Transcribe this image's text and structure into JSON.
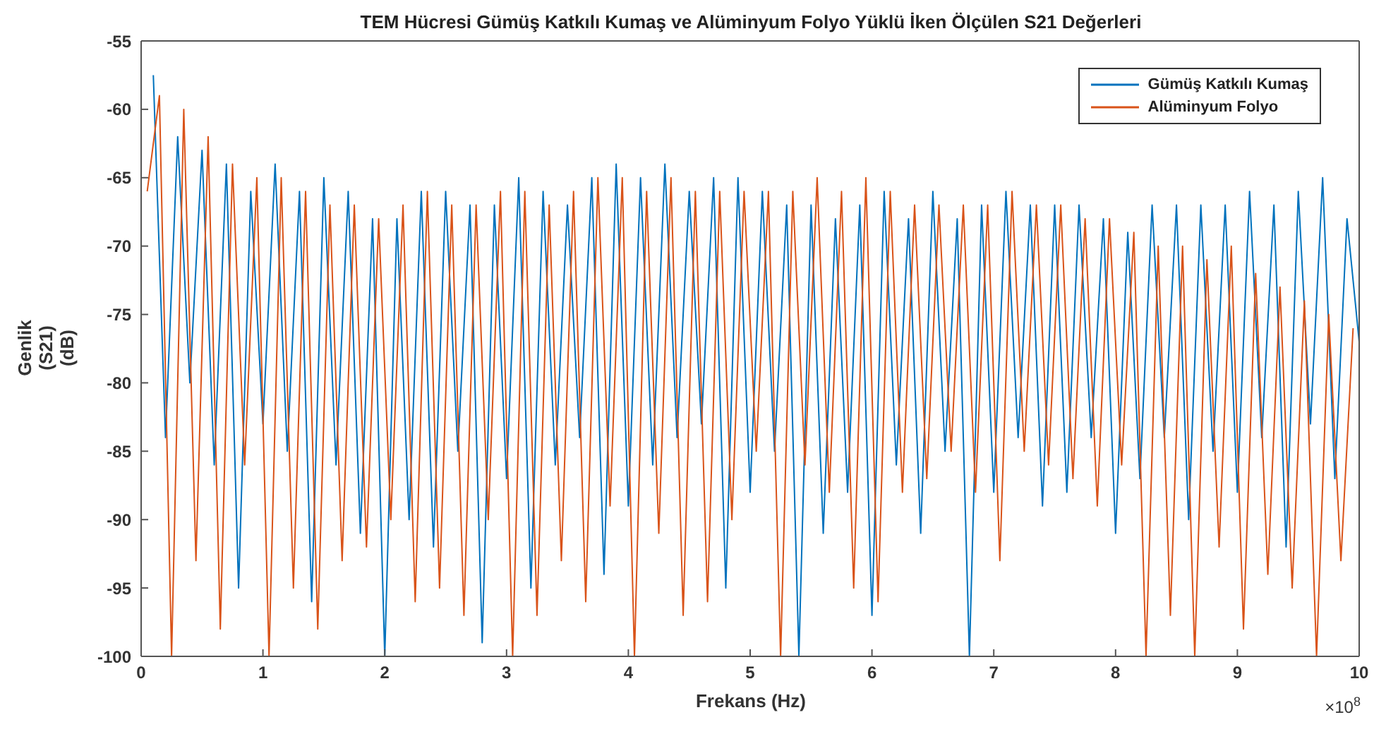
{
  "chart_data": {
    "type": "line",
    "title": "TEM Hücresi Gümüş Katkılı Kumaş ve Alüminyum Folyo Yüklü İken Ölçülen S21 Değerleri",
    "xlabel": "Frekans (Hz)",
    "ylabel": "Genlik\n(S21)\n(dB)",
    "annotations": [
      "×10$^{8}$"
    ],
    "xlim": [
      0,
      10
    ],
    "xticks": [
      0,
      1,
      2,
      3,
      4,
      5,
      6,
      7,
      8,
      9,
      10
    ],
    "ylim": [
      -100,
      -55
    ],
    "yticks": [
      -100,
      -95,
      -90,
      -85,
      -80,
      -75,
      -70,
      -65,
      -60,
      -55
    ],
    "legend": "top right",
    "marker": "none",
    "line_style": "solid",
    "series": [
      {
        "name": "Gümüş Katkılı Kumaş",
        "color": "#0072bd",
        "x": [
          0.1,
          0.2,
          0.3,
          0.4,
          0.5,
          0.6,
          0.7,
          0.8,
          0.9,
          1.0,
          1.1,
          1.2,
          1.3,
          1.4,
          1.5,
          1.6,
          1.7,
          1.8,
          1.9,
          2.0,
          2.1,
          2.2,
          2.3,
          2.4,
          2.5,
          2.6,
          2.7,
          2.8,
          2.9,
          3.0,
          3.1,
          3.2,
          3.3,
          3.4,
          3.5,
          3.6,
          3.7,
          3.8,
          3.9,
          4.0,
          4.1,
          4.2,
          4.3,
          4.4,
          4.5,
          4.6,
          4.7,
          4.8,
          4.9,
          5.0,
          5.1,
          5.2,
          5.3,
          5.4,
          5.5,
          5.6,
          5.7,
          5.8,
          5.9,
          6.0,
          6.1,
          6.2,
          6.3,
          6.4,
          6.5,
          6.6,
          6.7,
          6.8,
          6.9,
          7.0,
          7.1,
          7.2,
          7.3,
          7.4,
          7.5,
          7.6,
          7.7,
          7.8,
          7.9,
          8.0,
          8.1,
          8.2,
          8.3,
          8.4,
          8.5,
          8.6,
          8.7,
          8.8,
          8.9,
          9.0,
          9.1,
          9.2,
          9.3,
          9.4,
          9.5,
          9.6,
          9.7,
          9.8,
          9.9,
          10.0
        ],
        "values": [
          -57.5,
          -84,
          -62,
          -80,
          -63,
          -86,
          -64,
          -95,
          -66,
          -83,
          -64,
          -85,
          -66,
          -96,
          -65,
          -86,
          -66,
          -91,
          -68,
          -100,
          -68,
          -90,
          -66,
          -92,
          -66,
          -85,
          -67,
          -99,
          -67,
          -87,
          -65,
          -95,
          -66,
          -86,
          -67,
          -84,
          -65,
          -94,
          -64,
          -89,
          -65,
          -86,
          -64,
          -84,
          -66,
          -83,
          -65,
          -95,
          -65,
          -88,
          -66,
          -85,
          -67,
          -100,
          -67,
          -91,
          -68,
          -88,
          -67,
          -97,
          -66,
          -86,
          -68,
          -91,
          -66,
          -85,
          -68,
          -100,
          -67,
          -88,
          -66,
          -84,
          -67,
          -89,
          -67,
          -88,
          -67,
          -84,
          -68,
          -91,
          -69,
          -87,
          -67,
          -84,
          -67,
          -90,
          -67,
          -85,
          -67,
          -88,
          -66,
          -84,
          -67,
          -92,
          -66,
          -83,
          -65,
          -87,
          -68,
          -77
        ]
      },
      {
        "name": "Alüminyum Folyo",
        "color": "#d95319",
        "x": [
          0.05,
          0.15,
          0.25,
          0.35,
          0.45,
          0.55,
          0.65,
          0.75,
          0.85,
          0.95,
          1.05,
          1.15,
          1.25,
          1.35,
          1.45,
          1.55,
          1.65,
          1.75,
          1.85,
          1.95,
          2.05,
          2.15,
          2.25,
          2.35,
          2.45,
          2.55,
          2.65,
          2.75,
          2.85,
          2.95,
          3.05,
          3.15,
          3.25,
          3.35,
          3.45,
          3.55,
          3.65,
          3.75,
          3.85,
          3.95,
          4.05,
          4.15,
          4.25,
          4.35,
          4.45,
          4.55,
          4.65,
          4.75,
          4.85,
          4.95,
          5.05,
          5.15,
          5.25,
          5.35,
          5.45,
          5.55,
          5.65,
          5.75,
          5.85,
          5.95,
          6.05,
          6.15,
          6.25,
          6.35,
          6.45,
          6.55,
          6.65,
          6.75,
          6.85,
          6.95,
          7.05,
          7.15,
          7.25,
          7.35,
          7.45,
          7.55,
          7.65,
          7.75,
          7.85,
          7.95,
          8.05,
          8.15,
          8.25,
          8.35,
          8.45,
          8.55,
          8.65,
          8.75,
          8.85,
          8.95,
          9.05,
          9.15,
          9.25,
          9.35,
          9.45,
          9.55,
          9.65,
          9.75,
          9.85,
          9.95
        ],
        "values": [
          -66,
          -59,
          -100,
          -60,
          -93,
          -62,
          -98,
          -64,
          -86,
          -65,
          -100,
          -65,
          -95,
          -66,
          -98,
          -67,
          -93,
          -67,
          -92,
          -68,
          -90,
          -67,
          -96,
          -66,
          -95,
          -67,
          -97,
          -67,
          -90,
          -66,
          -100,
          -66,
          -97,
          -67,
          -93,
          -66,
          -96,
          -65,
          -89,
          -65,
          -100,
          -66,
          -91,
          -65,
          -97,
          -66,
          -96,
          -66,
          -90,
          -66,
          -85,
          -66,
          -100,
          -66,
          -86,
          -65,
          -88,
          -66,
          -95,
          -65,
          -96,
          -66,
          -88,
          -67,
          -87,
          -67,
          -85,
          -67,
          -88,
          -67,
          -93,
          -66,
          -85,
          -67,
          -86,
          -67,
          -87,
          -68,
          -89,
          -68,
          -86,
          -69,
          -100,
          -70,
          -97,
          -70,
          -100,
          -71,
          -92,
          -70,
          -98,
          -72,
          -94,
          -73,
          -95,
          -74,
          -100,
          -75,
          -93,
          -76
        ]
      }
    ]
  }
}
